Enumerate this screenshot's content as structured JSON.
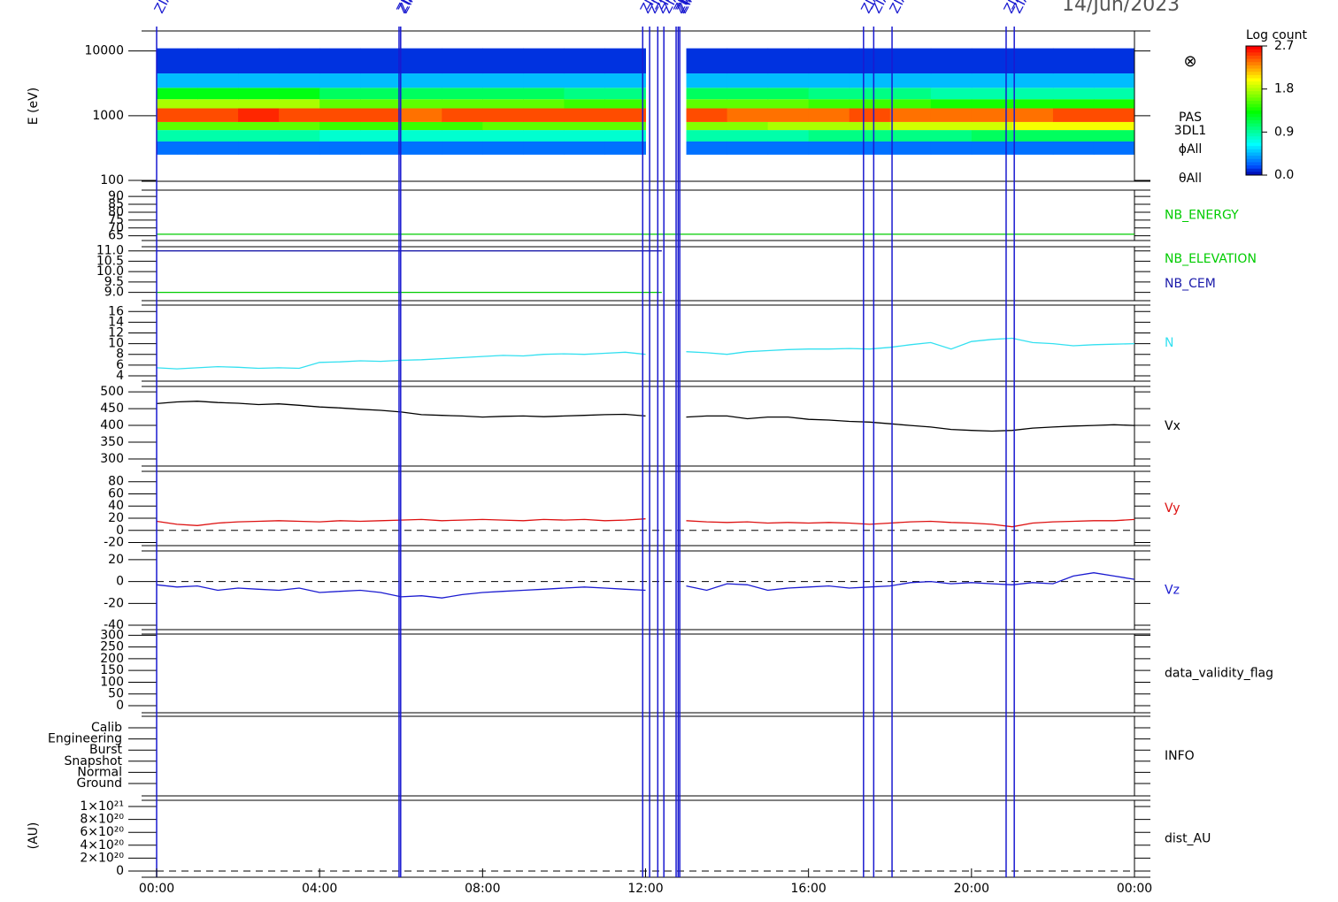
{
  "chart_data": [
    {
      "type": "heatmap",
      "ylabel": "E (eV)",
      "log_y": true,
      "ylim": [
        97,
        20400
      ],
      "yticks": [
        100,
        1000,
        10000
      ],
      "labels": [
        "PAS",
        "3DL1",
        "ϕAll",
        "θAll"
      ],
      "symbol": "⊗",
      "xbins": [
        0,
        1,
        2,
        3,
        4,
        5,
        6,
        7,
        8,
        9,
        10,
        11,
        12,
        13,
        14,
        15,
        16,
        17,
        18,
        19,
        20,
        21,
        22,
        23,
        24
      ],
      "ybins": [
        250,
        400,
        600,
        800,
        1300,
        1800,
        2700,
        4500,
        11000
      ],
      "values": [
        [
          0.3,
          0.3,
          0.3,
          0.3,
          0.3,
          0.3,
          0.3,
          0.3,
          0.3,
          0.3,
          0.3,
          0.3,
          null,
          0.3,
          0.3,
          0.3,
          0.3,
          0.3,
          0.3,
          0.3,
          0.3,
          0.3,
          0.3,
          0.3
        ],
        [
          0.9,
          0.9,
          0.9,
          0.9,
          0.8,
          0.8,
          0.8,
          0.8,
          0.8,
          0.8,
          0.8,
          0.8,
          null,
          0.9,
          0.9,
          0.9,
          1.0,
          1.0,
          1.0,
          1.0,
          1.1,
          1.1,
          1.1,
          1.1
        ],
        [
          1.6,
          1.6,
          1.6,
          1.6,
          1.5,
          1.5,
          1.5,
          1.5,
          1.6,
          1.6,
          1.6,
          1.6,
          null,
          1.7,
          1.7,
          1.8,
          1.8,
          1.8,
          1.9,
          1.9,
          1.9,
          2.0,
          2.0,
          2.0
        ],
        [
          2.5,
          2.5,
          2.6,
          2.5,
          2.5,
          2.5,
          2.4,
          2.5,
          2.5,
          2.5,
          2.5,
          2.5,
          null,
          2.5,
          2.4,
          2.4,
          2.4,
          2.5,
          2.4,
          2.4,
          2.4,
          2.4,
          2.5,
          2.5
        ],
        [
          1.8,
          1.8,
          1.8,
          1.8,
          1.6,
          1.6,
          1.6,
          1.6,
          1.6,
          1.6,
          1.5,
          1.5,
          null,
          1.6,
          1.6,
          1.6,
          1.5,
          1.5,
          1.5,
          1.4,
          1.4,
          1.4,
          1.4,
          1.4
        ],
        [
          1.3,
          1.3,
          1.3,
          1.3,
          1.1,
          1.1,
          1.1,
          1.1,
          1.1,
          1.1,
          1.0,
          1.0,
          null,
          1.1,
          1.1,
          1.1,
          1.0,
          1.0,
          1.0,
          0.9,
          0.9,
          0.9,
          0.9,
          0.9
        ],
        [
          0.5,
          0.5,
          0.5,
          0.5,
          0.5,
          0.5,
          0.5,
          0.5,
          0.5,
          0.5,
          0.5,
          0.5,
          null,
          0.5,
          0.5,
          0.5,
          0.5,
          0.5,
          0.5,
          0.5,
          0.5,
          0.5,
          0.5,
          0.5
        ],
        [
          0.15,
          0.15,
          0.15,
          0.15,
          0.15,
          0.15,
          0.15,
          0.15,
          0.15,
          0.15,
          0.15,
          0.15,
          null,
          0.15,
          0.15,
          0.15,
          0.15,
          0.15,
          0.15,
          0.15,
          0.15,
          0.15,
          0.15,
          0.15
        ]
      ],
      "colorbar": {
        "title": "Log count",
        "lim": [
          0,
          2.7
        ],
        "ticks": [
          {
            "value": 0,
            "label": "0.0"
          },
          0.9,
          1.8,
          2.7
        ]
      }
    },
    {
      "type": "line",
      "ylim": [
        62,
        94
      ],
      "yticks": [
        65,
        70,
        75,
        80,
        85,
        90
      ],
      "x": [
        0,
        24
      ],
      "series": [
        {
          "name": "NB_ENERGY",
          "color": "#00cc00",
          "values": [
            66,
            66
          ]
        }
      ]
    },
    {
      "type": "line",
      "ylim": [
        8.6,
        11.2
      ],
      "yticks": [
        {
          "value": 9,
          "label": "9.0"
        },
        9.5,
        {
          "value": 10,
          "label": "10.0"
        },
        10.5,
        {
          "value": 11,
          "label": "11.0"
        }
      ],
      "x": [
        0,
        12.4
      ],
      "series": [
        {
          "name": "NB_ELEVATION",
          "color": "#00cc00",
          "values": [
            9,
            9
          ]
        },
        {
          "name": "NB_CEM",
          "color": "#1a1aaa",
          "values": [
            11,
            11
          ]
        }
      ]
    },
    {
      "type": "line",
      "ylim": [
        3,
        17.2
      ],
      "yticks": [
        4,
        6,
        8,
        10,
        12,
        14,
        16
      ],
      "x": [
        0,
        0.5,
        1,
        1.5,
        2,
        2.5,
        3,
        3.5,
        4,
        4.5,
        5,
        5.5,
        6,
        6.5,
        7,
        7.5,
        8,
        8.5,
        9,
        9.5,
        10,
        10.5,
        11,
        11.5,
        12,
        12.5,
        13,
        13.5,
        14,
        14.5,
        15,
        15.5,
        16,
        16.5,
        17,
        17.5,
        18,
        18.5,
        19,
        19.5,
        20,
        20.5,
        21,
        21.5,
        22,
        22.5,
        23,
        23.5,
        24
      ],
      "series": [
        {
          "name": "N",
          "color": "#33e0f0",
          "values": [
            5.5,
            5.3,
            5.5,
            5.7,
            5.6,
            5.4,
            5.5,
            5.4,
            6.5,
            6.6,
            6.8,
            6.7,
            6.9,
            7.0,
            7.2,
            7.4,
            7.6,
            7.8,
            7.7,
            8.0,
            8.1,
            8.0,
            8.2,
            8.4,
            8.0,
            null,
            8.5,
            8.3,
            8.0,
            8.5,
            8.7,
            8.9,
            9.0,
            9.0,
            9.1,
            9.0,
            9.3,
            9.8,
            10.2,
            9.0,
            10.4,
            10.8,
            11.0,
            10.2,
            10.0,
            9.6,
            9.8,
            9.9,
            10.0
          ]
        }
      ]
    },
    {
      "type": "line",
      "ylim": [
        279,
        516
      ],
      "yticks": [
        300,
        350,
        400,
        450,
        500
      ],
      "x": [
        0,
        0.5,
        1,
        1.5,
        2,
        2.5,
        3,
        3.5,
        4,
        4.5,
        5,
        5.5,
        6,
        6.5,
        7,
        7.5,
        8,
        8.5,
        9,
        9.5,
        10,
        10.5,
        11,
        11.5,
        12,
        12.5,
        13,
        13.5,
        14,
        14.5,
        15,
        15.5,
        16,
        16.5,
        17,
        17.5,
        18,
        18.5,
        19,
        19.5,
        20,
        20.5,
        21,
        21.5,
        22,
        22.5,
        23,
        23.5,
        24
      ],
      "series": [
        {
          "name": "Vx",
          "color": "#000000",
          "values": [
            465,
            470,
            472,
            468,
            466,
            462,
            464,
            460,
            455,
            452,
            448,
            445,
            440,
            432,
            430,
            428,
            425,
            427,
            428,
            426,
            428,
            430,
            432,
            433,
            428,
            null,
            425,
            428,
            428,
            420,
            425,
            425,
            418,
            416,
            412,
            410,
            405,
            400,
            395,
            388,
            385,
            383,
            385,
            392,
            395,
            398,
            400,
            402,
            400
          ]
        }
      ]
    },
    {
      "type": "line",
      "ylim": [
        -25,
        97
      ],
      "yticks": [
        -20,
        0,
        20,
        40,
        60,
        80
      ],
      "zero_line": true,
      "x": [
        0,
        0.5,
        1,
        1.5,
        2,
        2.5,
        3,
        3.5,
        4,
        4.5,
        5,
        5.5,
        6,
        6.5,
        7,
        7.5,
        8,
        8.5,
        9,
        9.5,
        10,
        10.5,
        11,
        11.5,
        12,
        12.5,
        13,
        13.5,
        14,
        14.5,
        15,
        15.5,
        16,
        16.5,
        17,
        17.5,
        18,
        18.5,
        19,
        19.5,
        20,
        20.5,
        21,
        21.5,
        22,
        22.5,
        23,
        23.5,
        24
      ],
      "series": [
        {
          "name": "Vy",
          "color": "#dd1111",
          "values": [
            15,
            10,
            8,
            12,
            14,
            15,
            16,
            15,
            14,
            16,
            15,
            16,
            17,
            18,
            16,
            17,
            18,
            17,
            16,
            18,
            17,
            18,
            16,
            17,
            19,
            null,
            16,
            14,
            13,
            14,
            12,
            13,
            12,
            13,
            12,
            10,
            12,
            14,
            15,
            13,
            12,
            10,
            6,
            12,
            14,
            15,
            16,
            16,
            18
          ]
        }
      ]
    },
    {
      "type": "line",
      "ylim": [
        -44,
        28
      ],
      "yticks": [
        -40,
        -20,
        0,
        20
      ],
      "zero_line": true,
      "x": [
        0,
        0.5,
        1,
        1.5,
        2,
        2.5,
        3,
        3.5,
        4,
        4.5,
        5,
        5.5,
        6,
        6.5,
        7,
        7.5,
        8,
        8.5,
        9,
        9.5,
        10,
        10.5,
        11,
        11.5,
        12,
        12.5,
        13,
        13.5,
        14,
        14.5,
        15,
        15.5,
        16,
        16.5,
        17,
        17.5,
        18,
        18.5,
        19,
        19.5,
        20,
        20.5,
        21,
        21.5,
        22,
        22.5,
        23,
        23.5,
        24
      ],
      "series": [
        {
          "name": "Vz",
          "color": "#1a1ad0",
          "values": [
            -3,
            -5,
            -4,
            -8,
            -6,
            -7,
            -8,
            -6,
            -10,
            -9,
            -8,
            -10,
            -14,
            -13,
            -15,
            -12,
            -10,
            -9,
            -8,
            -7,
            -6,
            -5,
            -6,
            -7,
            -8,
            null,
            -4,
            -8,
            -2,
            -3,
            -8,
            -6,
            -5,
            -4,
            -6,
            -5,
            -4,
            -1,
            0,
            -2,
            -1,
            -2,
            -3,
            -1,
            -2,
            5,
            8,
            5,
            2
          ]
        }
      ]
    },
    {
      "type": "line",
      "ylim": [
        -30,
        305
      ],
      "yticks": [
        0,
        50,
        100,
        150,
        200,
        250,
        300
      ],
      "label": "data_validity_flag"
    },
    {
      "type": "category",
      "ycategories": [
        "Ground",
        "Normal",
        "Snapshot",
        "Burst",
        "Engineering",
        "Calib"
      ],
      "label": "INFO"
    },
    {
      "type": "line",
      "ylabel": "(AU)",
      "ylim": [
        -9.6e+19,
        1.096e+21
      ],
      "zero_line": true,
      "label": "dist_AU",
      "yticks": [
        0,
        {
          "value": 2e+20,
          "label": "2×10²⁰"
        },
        {
          "value": 4e+20,
          "label": "4×10²⁰"
        },
        {
          "value": 6e+20,
          "label": "6×10²⁰"
        },
        {
          "value": 8e+20,
          "label": "8×10²⁰"
        },
        {
          "value": 1e+21,
          "label": "1×10²¹"
        }
      ]
    }
  ],
  "title": "14/Jun/2023",
  "xlim": [
    0,
    24
  ],
  "xticks": [
    {
      "value": 0,
      "label": "00:00"
    },
    {
      "value": 4,
      "label": "04:00"
    },
    {
      "value": 8,
      "label": "08:00"
    },
    {
      "value": 12,
      "label": "12:00"
    },
    {
      "value": 16,
      "label": "16:00"
    },
    {
      "value": 20,
      "label": "20:00"
    },
    {
      "value": 24,
      "label": "00:00"
    }
  ],
  "events": {
    "label": "ZIAS",
    "color": "#1a1ad0",
    "x": [
      0,
      5.95,
      5.99,
      11.93,
      12.1,
      12.3,
      12.45,
      12.75,
      12.8,
      12.84,
      17.35,
      17.6,
      18.05,
      20.85,
      21.05
    ]
  }
}
